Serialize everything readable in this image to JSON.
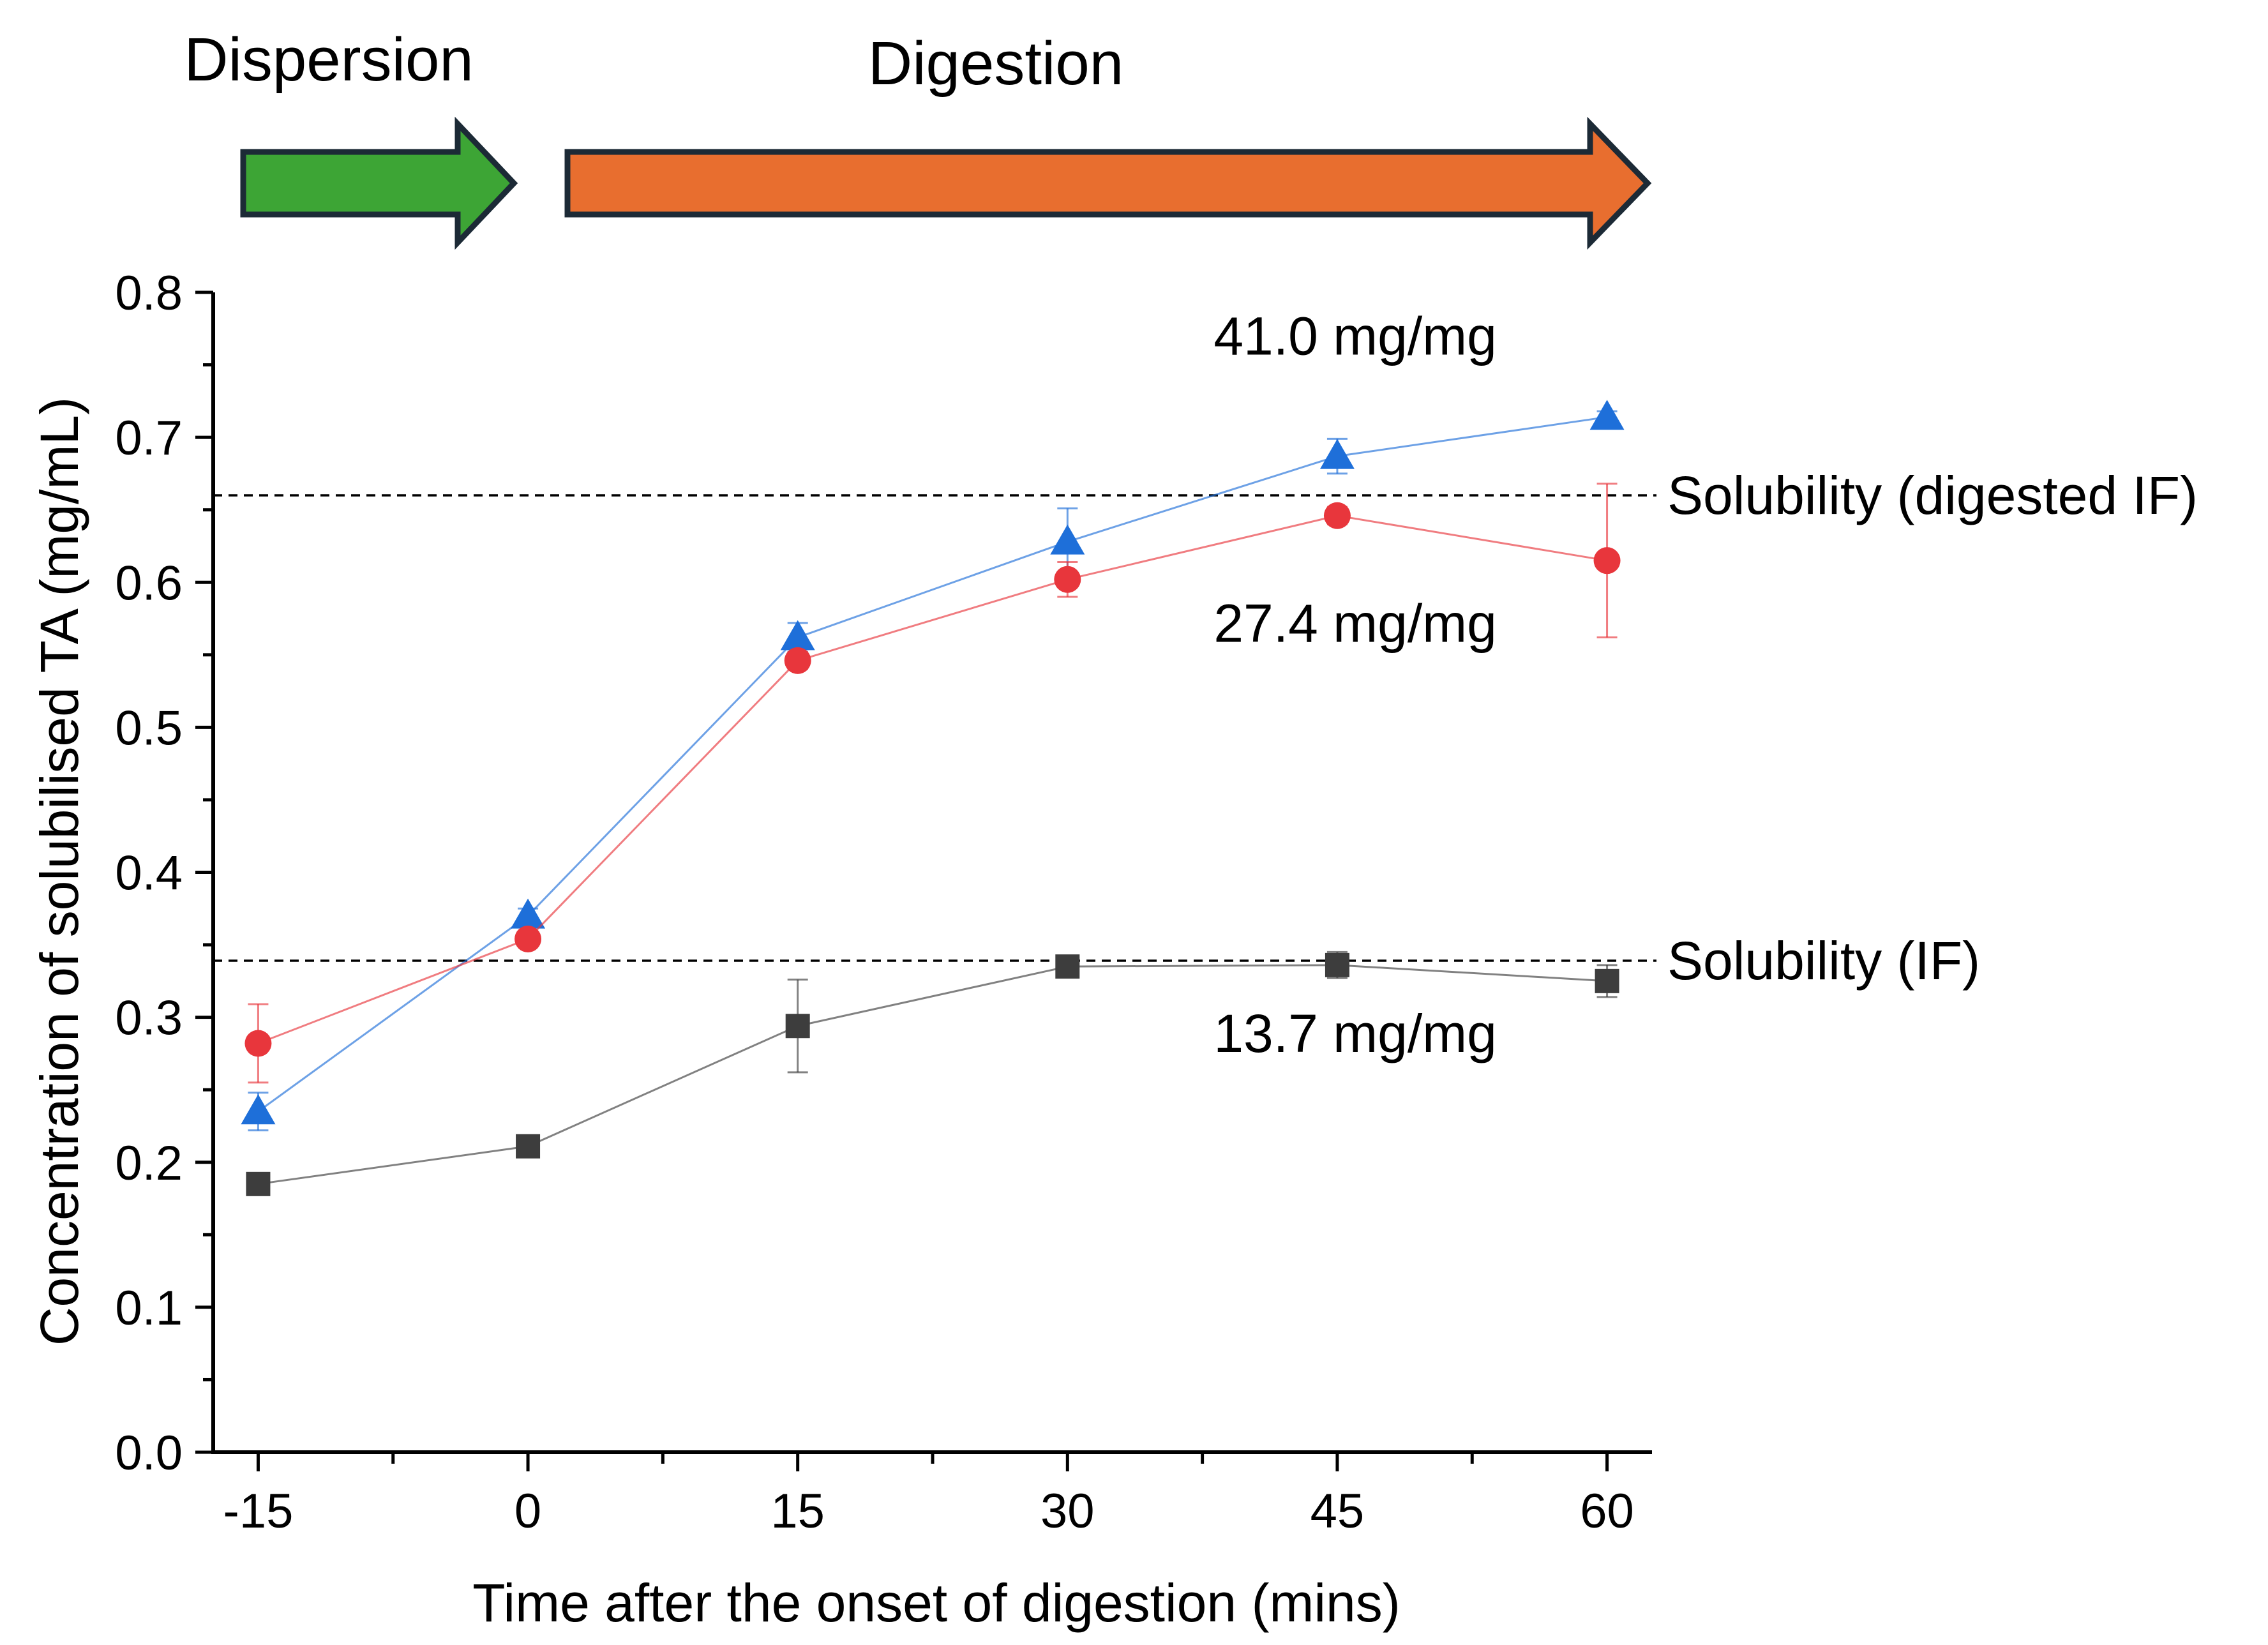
{
  "phases": {
    "dispersion": {
      "label": "Dispersion",
      "color": "#3da535"
    },
    "digestion": {
      "label": "Digestion",
      "color": "#e86e2f"
    },
    "outline_color": "#1c2a36"
  },
  "chart_data": {
    "type": "line",
    "title": "",
    "xlabel": "Time after the onset of digestion (mins)",
    "ylabel": "Concentration of solubilised TA (mg/mL)",
    "x": [
      -15,
      0,
      15,
      30,
      45,
      60
    ],
    "x_ticks": [
      "-15",
      "0",
      "15",
      "30",
      "45",
      "60"
    ],
    "y_ticks": [
      "0.0",
      "0.1",
      "0.2",
      "0.3",
      "0.4",
      "0.5",
      "0.6",
      "0.7",
      "0.8"
    ],
    "xlim": [
      -17.5,
      62.5
    ],
    "ylim": [
      0,
      0.8
    ],
    "grid": false,
    "legend": "none",
    "series": [
      {
        "marker": "triangle",
        "color": "#1e6fd9",
        "values": [
          0.235,
          0.37,
          0.562,
          0.628,
          0.687,
          0.714
        ],
        "errors": [
          0.013,
          0.005,
          0.01,
          0.023,
          0.012,
          0.004
        ]
      },
      {
        "marker": "circle",
        "color": "#e8363c",
        "values": [
          0.282,
          0.354,
          0.546,
          0.602,
          0.646,
          0.615
        ],
        "errors": [
          0.027,
          0.005,
          0.006,
          0.012,
          0.006,
          0.053
        ]
      },
      {
        "marker": "square",
        "color": "#3d3d3d",
        "values": [
          0.185,
          0.211,
          0.294,
          0.335,
          0.336,
          0.325
        ],
        "errors": [
          0.004,
          0.005,
          0.032,
          0.005,
          0.009,
          0.011
        ]
      }
    ],
    "reference_lines": [
      {
        "y": 0.66,
        "label": "Solubility (digested IF)"
      },
      {
        "y": 0.339,
        "label": "Solubility (IF)"
      }
    ],
    "annotations": [
      {
        "text": "41.0 mg/mg",
        "x": 46,
        "y": 0.757
      },
      {
        "text": "27.4 mg/mg",
        "x": 46,
        "y": 0.559
      },
      {
        "text": "13.7 mg/mg",
        "x": 46,
        "y": 0.276
      }
    ]
  }
}
